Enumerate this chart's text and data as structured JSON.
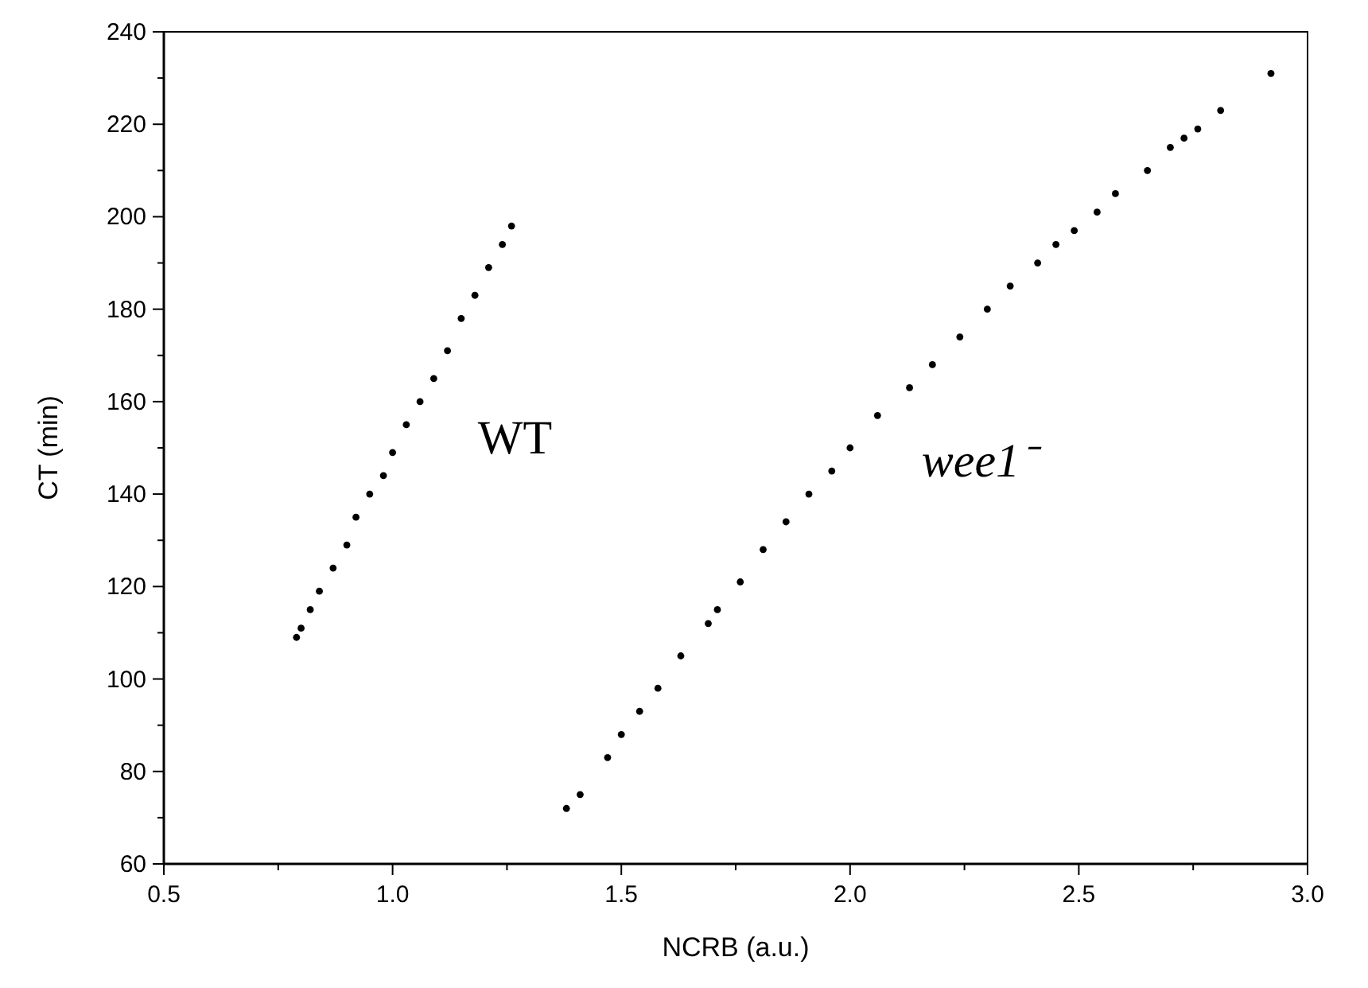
{
  "chart_data": {
    "type": "scatter",
    "xlabel": "NCRB (a.u.)",
    "ylabel": "CT (min)",
    "marker": "circle",
    "xlim": [
      0.5,
      3.0
    ],
    "ylim": [
      60,
      240
    ],
    "xticks": [
      {
        "value": 0.5,
        "label": "0.5"
      },
      {
        "value": 0.75,
        "label": null
      },
      {
        "value": 1.0,
        "label": "1.0"
      },
      {
        "value": 1.25,
        "label": null
      },
      {
        "value": 1.5,
        "label": "1.5"
      },
      {
        "value": 1.75,
        "label": null
      },
      {
        "value": 2.0,
        "label": "2.0"
      },
      {
        "value": 2.25,
        "label": null
      },
      {
        "value": 2.5,
        "label": "2.5"
      },
      {
        "value": 2.75,
        "label": null
      },
      {
        "value": 3.0,
        "label": "3.0"
      }
    ],
    "yticks": [
      60,
      {
        "value": 70,
        "label": null
      },
      80,
      {
        "value": 90,
        "label": null
      },
      100,
      {
        "value": 110,
        "label": null
      },
      120,
      {
        "value": 130,
        "label": null
      },
      140,
      {
        "value": 150,
        "label": null
      },
      160,
      {
        "value": 170,
        "label": null
      },
      180,
      {
        "value": 190,
        "label": null
      },
      200,
      {
        "value": 210,
        "label": null
      },
      220,
      {
        "value": 230,
        "label": null
      },
      240
    ],
    "series": [
      {
        "name": "WT",
        "color": "#000000",
        "x": [
          0.79,
          0.8,
          0.82,
          0.84,
          0.87,
          0.9,
          0.92,
          0.95,
          0.98,
          1.0,
          1.03,
          1.06,
          1.09,
          1.12,
          1.15,
          1.18,
          1.21,
          1.24,
          1.26
        ],
        "values": [
          109,
          111,
          115,
          119,
          124,
          129,
          135,
          140,
          144,
          149,
          155,
          160,
          165,
          171,
          178,
          183,
          189,
          194,
          198
        ]
      },
      {
        "name": "wee1⁻",
        "color": "#000000",
        "x": [
          1.38,
          1.41,
          1.47,
          1.5,
          1.54,
          1.58,
          1.63,
          1.69,
          1.71,
          1.76,
          1.81,
          1.86,
          1.91,
          1.96,
          2.0,
          2.06,
          2.13,
          2.18,
          2.24,
          2.3,
          2.35,
          2.41,
          2.45,
          2.49,
          2.54,
          2.58,
          2.65,
          2.7,
          2.73,
          2.76,
          2.81,
          2.92
        ],
        "values": [
          72,
          75,
          83,
          88,
          93,
          98,
          105,
          112,
          115,
          121,
          128,
          134,
          140,
          145,
          150,
          157,
          163,
          168,
          174,
          180,
          185,
          190,
          194,
          197,
          201,
          205,
          210,
          215,
          217,
          219,
          223,
          231
        ]
      }
    ]
  }
}
